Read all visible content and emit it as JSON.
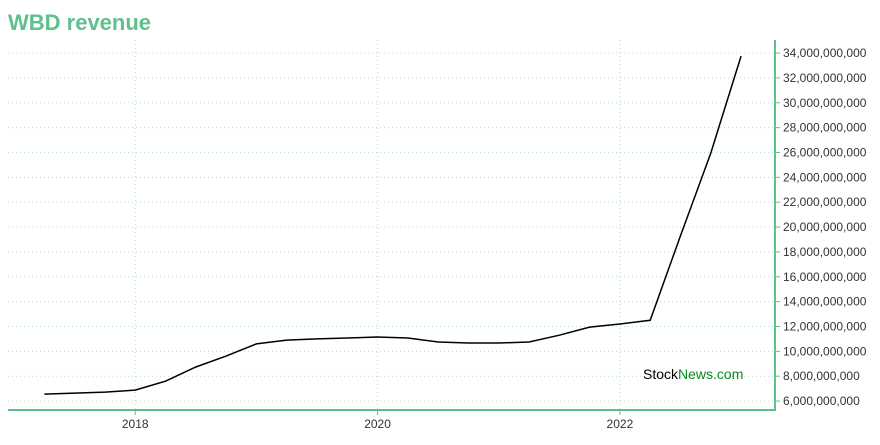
{
  "chart_data": {
    "type": "line",
    "title": "WBD revenue",
    "x": [
      2017.25,
      2017.5,
      2017.75,
      2018,
      2018.25,
      2018.5,
      2018.75,
      2019,
      2019.25,
      2019.5,
      2019.75,
      2020,
      2020.25,
      2020.5,
      2020.75,
      2021,
      2021.25,
      2021.5,
      2021.75,
      2022,
      2022.25,
      2022.5,
      2022.75,
      2023
    ],
    "series": [
      {
        "name": "WBD revenue",
        "color": "#000000",
        "values": [
          6560000000,
          6640000000,
          6720000000,
          6880000000,
          7600000000,
          8740000000,
          9620000000,
          10600000000,
          10900000000,
          11000000000,
          11070000000,
          11150000000,
          11070000000,
          10750000000,
          10670000000,
          10670000000,
          10750000000,
          11300000000,
          11950000000,
          12200000000,
          12500000000,
          19300000000,
          25950000000,
          33750000000
        ]
      }
    ],
    "xlim": [
      2016.95,
      2023.28
    ],
    "xticks": [
      2018,
      2020,
      2022
    ],
    "ylim": [
      5280000000,
      35050000000
    ],
    "yticks": [
      {
        "value": 6000000000,
        "label": "6,000,000,000"
      },
      {
        "value": 8000000000,
        "label": "8,000,000,000"
      },
      {
        "value": 10000000000,
        "label": "10,000,000,000"
      },
      {
        "value": 12000000000,
        "label": "12,000,000,000"
      },
      {
        "value": 14000000000,
        "label": "14,000,000,000"
      },
      {
        "value": 16000000000,
        "label": "16,000,000,000"
      },
      {
        "value": 18000000000,
        "label": "18,000,000,000"
      },
      {
        "value": 20000000000,
        "label": "20,000,000,000"
      },
      {
        "value": 22000000000,
        "label": "22,000,000,000"
      },
      {
        "value": 24000000000,
        "label": "24,000,000,000"
      },
      {
        "value": 26000000000,
        "label": "26,000,000,000"
      },
      {
        "value": 28000000000,
        "label": "28,000,000,000"
      },
      {
        "value": 30000000000,
        "label": "30,000,000,000"
      },
      {
        "value": 32000000000,
        "label": "32,000,000,000"
      },
      {
        "value": 34000000000,
        "label": "34,000,000,000"
      }
    ],
    "y_axis_side": "right",
    "grid": true,
    "axis_color": "#5fc08e",
    "watermark": {
      "first": "Stock",
      "second": "News.com"
    }
  }
}
